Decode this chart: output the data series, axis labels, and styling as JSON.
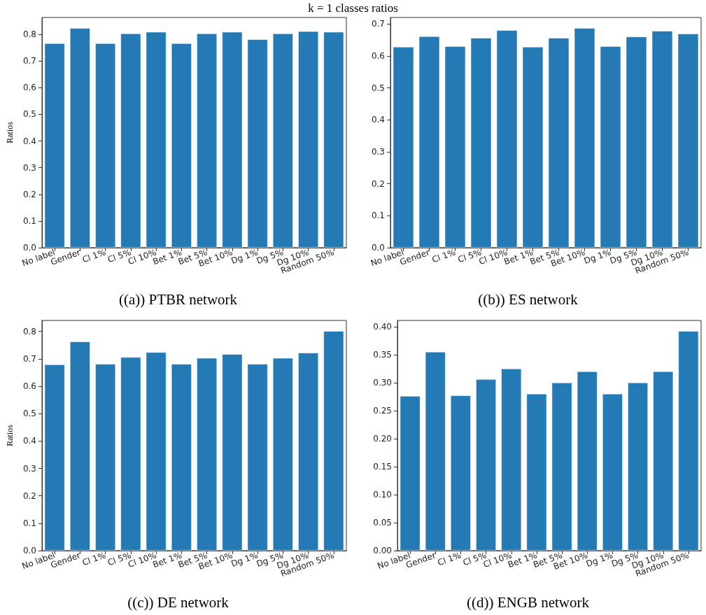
{
  "chart_data": [
    {
      "type": "bar",
      "title": "k = 1 classes ratios",
      "xlabel": "((a)) PTBR network",
      "ylabel": "Ratios",
      "categories": [
        "No label",
        "Gender",
        "Cl 1%",
        "Cl 5%",
        "Cl 10%",
        "Bet 1%",
        "Bet 5%",
        "Bet 10%",
        "Dg 1%",
        "Dg 5%",
        "Dg 10%",
        "Random 50%"
      ],
      "color": "#1f77b4",
      "values": [
        0.766,
        0.823,
        0.766,
        0.803,
        0.809,
        0.766,
        0.803,
        0.809,
        0.781,
        0.803,
        0.811,
        0.809
      ],
      "ylim": [
        0,
        0.863
      ],
      "yticks": [
        {
          "value": 0,
          "label": "0.0"
        },
        {
          "value": 0.1,
          "label": "0.1"
        },
        {
          "value": 0.2,
          "label": "0.2"
        },
        {
          "value": 0.3,
          "label": "0.3"
        },
        {
          "value": 0.4,
          "label": "0.4"
        },
        {
          "value": 0.5,
          "label": "0.5"
        },
        {
          "value": 0.6,
          "label": "0.6"
        },
        {
          "value": 0.7,
          "label": "0.7"
        },
        {
          "value": 0.8,
          "label": "0.8"
        }
      ]
    },
    {
      "type": "bar",
      "xlabel": "((b)) ES network",
      "categories": [
        "No label",
        "Gender",
        "Cl 1%",
        "Cl 5%",
        "Cl 10%",
        "Bet 1%",
        "Bet 5%",
        "Bet 10%",
        "Dg 1%",
        "Dg 5%",
        "Dg 10%",
        "Random 50%"
      ],
      "color": "#1f77b4",
      "values": [
        0.628,
        0.661,
        0.63,
        0.656,
        0.68,
        0.628,
        0.656,
        0.687,
        0.63,
        0.66,
        0.678,
        0.669
      ],
      "ylim": [
        0,
        0.72
      ],
      "yticks": [
        {
          "value": 0,
          "label": "0.0"
        },
        {
          "value": 0.1,
          "label": "0.1"
        },
        {
          "value": 0.2,
          "label": "0.2"
        },
        {
          "value": 0.3,
          "label": "0.3"
        },
        {
          "value": 0.4,
          "label": "0.4"
        },
        {
          "value": 0.5,
          "label": "0.5"
        },
        {
          "value": 0.6,
          "label": "0.6"
        },
        {
          "value": 0.7,
          "label": "0.7"
        }
      ]
    },
    {
      "type": "bar",
      "xlabel": "((c)) DE network",
      "ylabel": "Ratios",
      "categories": [
        "No label",
        "Gender",
        "Cl 1%",
        "Cl 5%",
        "Cl 10%",
        "Bet 1%",
        "Bet 5%",
        "Bet 10%",
        "Dg 1%",
        "Dg 5%",
        "Dg 10%",
        "Random 50%"
      ],
      "color": "#1f77b4",
      "values": [
        0.679,
        0.763,
        0.681,
        0.706,
        0.724,
        0.681,
        0.703,
        0.717,
        0.681,
        0.703,
        0.722,
        0.801
      ],
      "ylim": [
        0,
        0.84
      ],
      "yticks": [
        {
          "value": 0,
          "label": "0.0"
        },
        {
          "value": 0.1,
          "label": "0.1"
        },
        {
          "value": 0.2,
          "label": "0.2"
        },
        {
          "value": 0.3,
          "label": "0.3"
        },
        {
          "value": 0.4,
          "label": "0.4"
        },
        {
          "value": 0.5,
          "label": "0.5"
        },
        {
          "value": 0.6,
          "label": "0.6"
        },
        {
          "value": 0.7,
          "label": "0.7"
        },
        {
          "value": 0.8,
          "label": "0.8"
        }
      ]
    },
    {
      "type": "bar",
      "xlabel": "((d)) ENGB network",
      "categories": [
        "No label",
        "Gender",
        "Cl 1%",
        "Cl 5%",
        "Cl 10%",
        "Bet 1%",
        "Bet 5%",
        "Bet 10%",
        "Dg 1%",
        "Dg 5%",
        "Dg 10%",
        "Random 50%"
      ],
      "color": "#1f77b4",
      "values": [
        0.276,
        0.355,
        0.277,
        0.306,
        0.325,
        0.28,
        0.3,
        0.32,
        0.28,
        0.3,
        0.32,
        0.392
      ],
      "ylim": [
        0,
        0.411
      ],
      "yticks": [
        {
          "value": 0,
          "label": "0.00"
        },
        {
          "value": 0.05,
          "label": "0.05"
        },
        {
          "value": 0.1,
          "label": "0.10"
        },
        {
          "value": 0.15,
          "label": "0.15"
        },
        {
          "value": 0.2,
          "label": "0.20"
        },
        {
          "value": 0.25,
          "label": "0.25"
        },
        {
          "value": 0.3,
          "label": "0.30"
        },
        {
          "value": 0.35,
          "label": "0.35"
        },
        {
          "value": 0.4,
          "label": "0.40"
        }
      ]
    }
  ]
}
